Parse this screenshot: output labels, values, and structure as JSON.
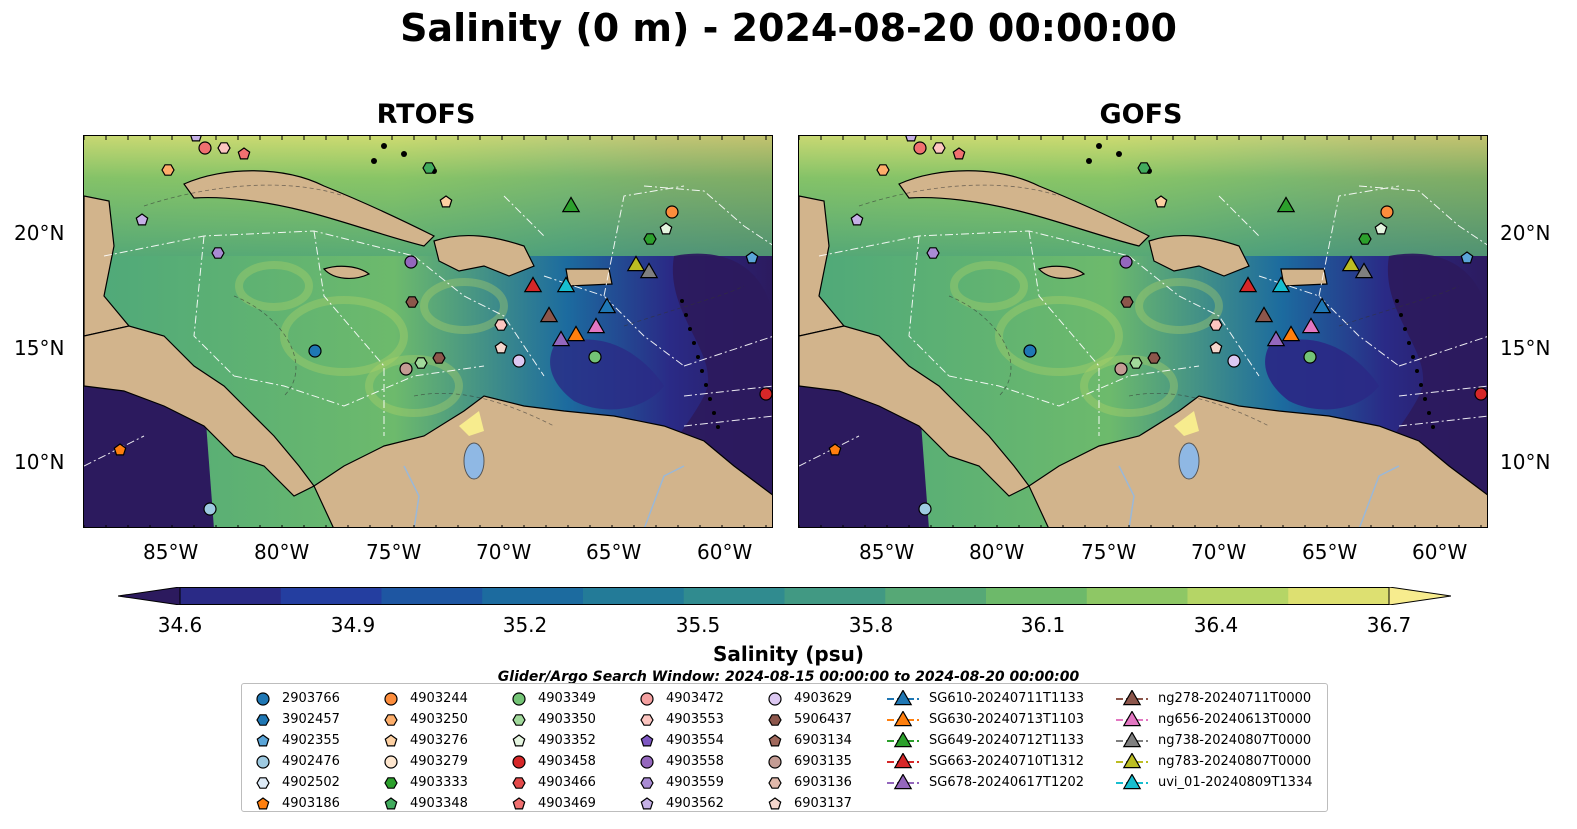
{
  "title": "Salinity (0 m) - 2024-08-20 00:00:00",
  "panels": [
    {
      "title": "RTOFS"
    },
    {
      "title": "GOFS"
    }
  ],
  "lon_ticks": [
    "85°W",
    "80°W",
    "75°W",
    "70°W",
    "65°W",
    "60°W"
  ],
  "lat_ticks": [
    "20°N",
    "15°N",
    "10°N"
  ],
  "colorbar": {
    "label": "Salinity (psu)",
    "ticks": [
      "34.6",
      "34.9",
      "35.2",
      "35.5",
      "35.8",
      "36.1",
      "36.4",
      "36.7"
    ],
    "range": [
      34.6,
      36.7
    ],
    "colors": [
      "#2c1a5e",
      "#2a2a86",
      "#243ea0",
      "#1e56a2",
      "#1c6b9f",
      "#237b98",
      "#308b8f",
      "#419983",
      "#56a876",
      "#6db96a",
      "#8ec765",
      "#b5d566",
      "#dde071",
      "#f7ec8e"
    ]
  },
  "legend": {
    "title": "Glider/Argo Search Window: 2024-08-15 00:00:00 to 2024-08-20 00:00:00",
    "columns": [
      [
        {
          "label": "2903766",
          "shape": "circle",
          "color": "#1f77b4"
        },
        {
          "label": "3902457",
          "shape": "hexagon",
          "color": "#1f77b4"
        },
        {
          "label": "4902355",
          "shape": "pentagon",
          "color": "#5aa5d8"
        },
        {
          "label": "4902476",
          "shape": "circle",
          "color": "#9ecae1"
        },
        {
          "label": "4902502",
          "shape": "hexagon",
          "color": "#deebf7"
        },
        {
          "label": "4903186",
          "shape": "pentagon",
          "color": "#ff7f0e"
        }
      ],
      [
        {
          "label": "4903244",
          "shape": "circle",
          "color": "#fd8d3c"
        },
        {
          "label": "4903250",
          "shape": "hexagon",
          "color": "#fdae6b"
        },
        {
          "label": "4903276",
          "shape": "pentagon",
          "color": "#fdd0a2"
        },
        {
          "label": "4903279",
          "shape": "circle",
          "color": "#fee6ce"
        },
        {
          "label": "4903333",
          "shape": "hexagon",
          "color": "#2ca02c"
        },
        {
          "label": "4903348",
          "shape": "pentagon",
          "color": "#41ab5d"
        }
      ],
      [
        {
          "label": "4903349",
          "shape": "circle",
          "color": "#74c476"
        },
        {
          "label": "4903350",
          "shape": "hexagon",
          "color": "#a1d99b"
        },
        {
          "label": "4903352",
          "shape": "pentagon",
          "color": "#e5f5e0"
        },
        {
          "label": "4903458",
          "shape": "circle",
          "color": "#d62728"
        },
        {
          "label": "4903466",
          "shape": "hexagon",
          "color": "#e34a4a"
        },
        {
          "label": "4903469",
          "shape": "pentagon",
          "color": "#f07070"
        }
      ],
      [
        {
          "label": "4903472",
          "shape": "circle",
          "color": "#f4a0a0"
        },
        {
          "label": "4903553",
          "shape": "hexagon",
          "color": "#fcc5c0"
        },
        {
          "label": "4903554",
          "shape": "pentagon",
          "color": "#7e57c2"
        },
        {
          "label": "4903558",
          "shape": "circle",
          "color": "#9467bd"
        },
        {
          "label": "4903559",
          "shape": "hexagon",
          "color": "#a98bd4"
        },
        {
          "label": "4903562",
          "shape": "pentagon",
          "color": "#c5b0e6"
        }
      ],
      [
        {
          "label": "4903629",
          "shape": "circle",
          "color": "#dcc8f2"
        },
        {
          "label": "5906437",
          "shape": "hexagon",
          "color": "#8c564b"
        },
        {
          "label": "6903134",
          "shape": "pentagon",
          "color": "#a0685c"
        },
        {
          "label": "6903135",
          "shape": "circle",
          "color": "#c49c94"
        },
        {
          "label": "6903136",
          "shape": "hexagon",
          "color": "#e0b8ab"
        },
        {
          "label": "6903137",
          "shape": "pentagon",
          "color": "#f5d6cc"
        }
      ],
      [
        {
          "label": "SG610-20240711T1133",
          "shape": "triangle",
          "color": "#1f77b4"
        },
        {
          "label": "SG630-20240713T1103",
          "shape": "triangle",
          "color": "#ff7f0e"
        },
        {
          "label": "SG649-20240712T1133",
          "shape": "triangle",
          "color": "#2ca02c"
        },
        {
          "label": "SG663-20240710T1312",
          "shape": "triangle",
          "color": "#d62728"
        },
        {
          "label": "SG678-20240617T1202",
          "shape": "triangle",
          "color": "#9467bd"
        }
      ],
      [
        {
          "label": "ng278-20240711T0000",
          "shape": "triangle",
          "color": "#8c564b"
        },
        {
          "label": "ng656-20240613T0000",
          "shape": "triangle",
          "color": "#e377c2"
        },
        {
          "label": "ng738-20240807T0000",
          "shape": "triangle",
          "color": "#7f7f7f"
        },
        {
          "label": "ng783-20240807T0000",
          "shape": "triangle",
          "color": "#bcbd22"
        },
        {
          "label": "uvi_01-20240809T1334",
          "shape": "triangle",
          "color": "#17becf"
        }
      ]
    ]
  }
}
